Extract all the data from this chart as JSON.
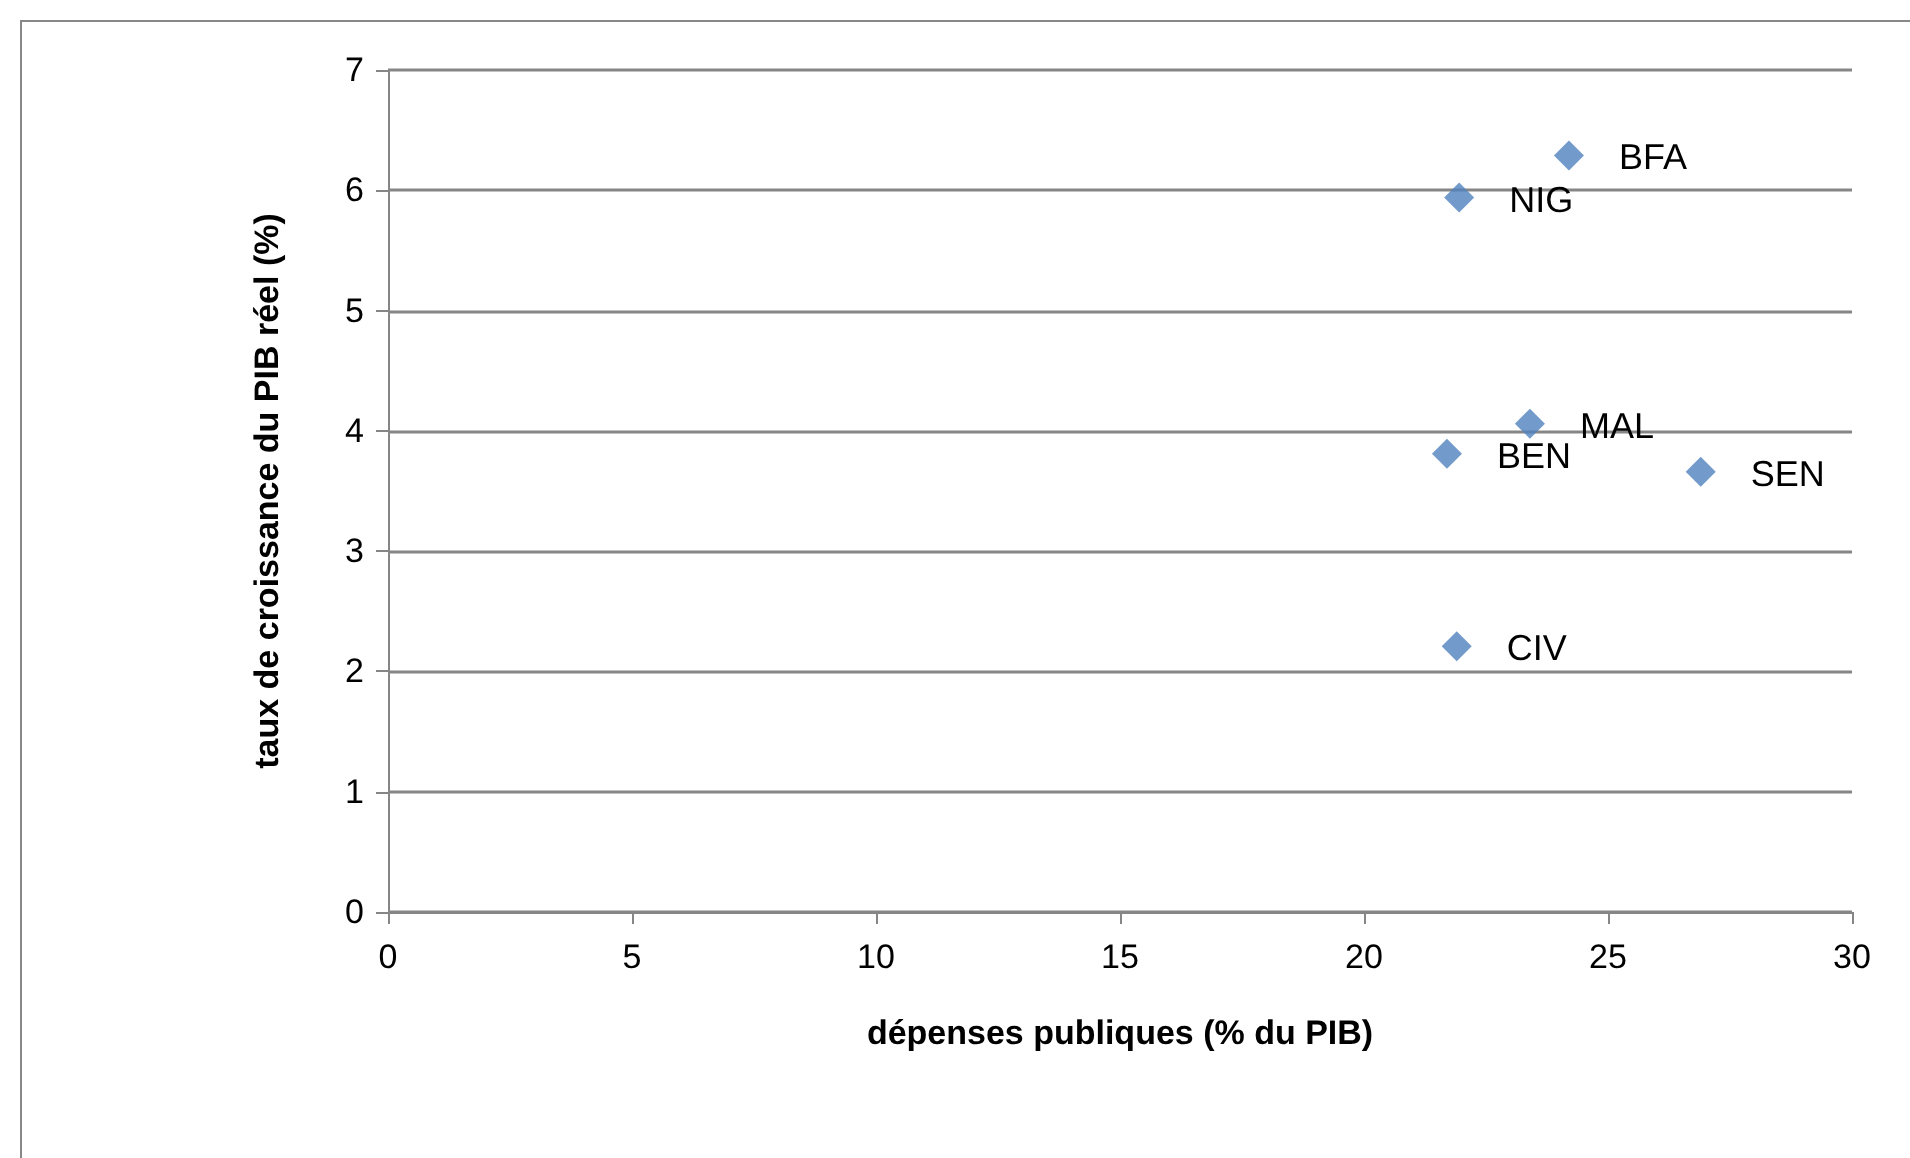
{
  "chart_data": {
    "type": "scatter",
    "xlabel": "dépenses publiques (% du PIB)",
    "ylabel": "taux de croissance du PIB réel (%)",
    "x": [
      24.2,
      21.95,
      23.4,
      21.7,
      26.9,
      21.9
    ],
    "values": [
      6.29,
      5.94,
      4.06,
      3.81,
      3.66,
      2.21
    ],
    "color": "#4f81bd",
    "marker": "diamond",
    "xlim": [
      0,
      30
    ],
    "xticks": [
      0,
      5,
      10,
      15,
      20,
      25,
      30
    ],
    "ylim": [
      0,
      7
    ],
    "yticks": [
      0,
      1,
      2,
      3,
      4,
      5,
      6,
      7
    ],
    "grid": "y",
    "annotations": [
      {
        "text": "BFA",
        "x": 24.2,
        "y": 6.29
      },
      {
        "text": "NIG",
        "x": 21.95,
        "y": 5.94
      },
      {
        "text": "MAL",
        "x": 23.4,
        "y": 4.06
      },
      {
        "text": "BEN",
        "x": 21.7,
        "y": 3.81
      },
      {
        "text": "SEN",
        "x": 26.9,
        "y": 3.66
      },
      {
        "text": "CIV",
        "x": 21.9,
        "y": 2.21
      }
    ]
  }
}
